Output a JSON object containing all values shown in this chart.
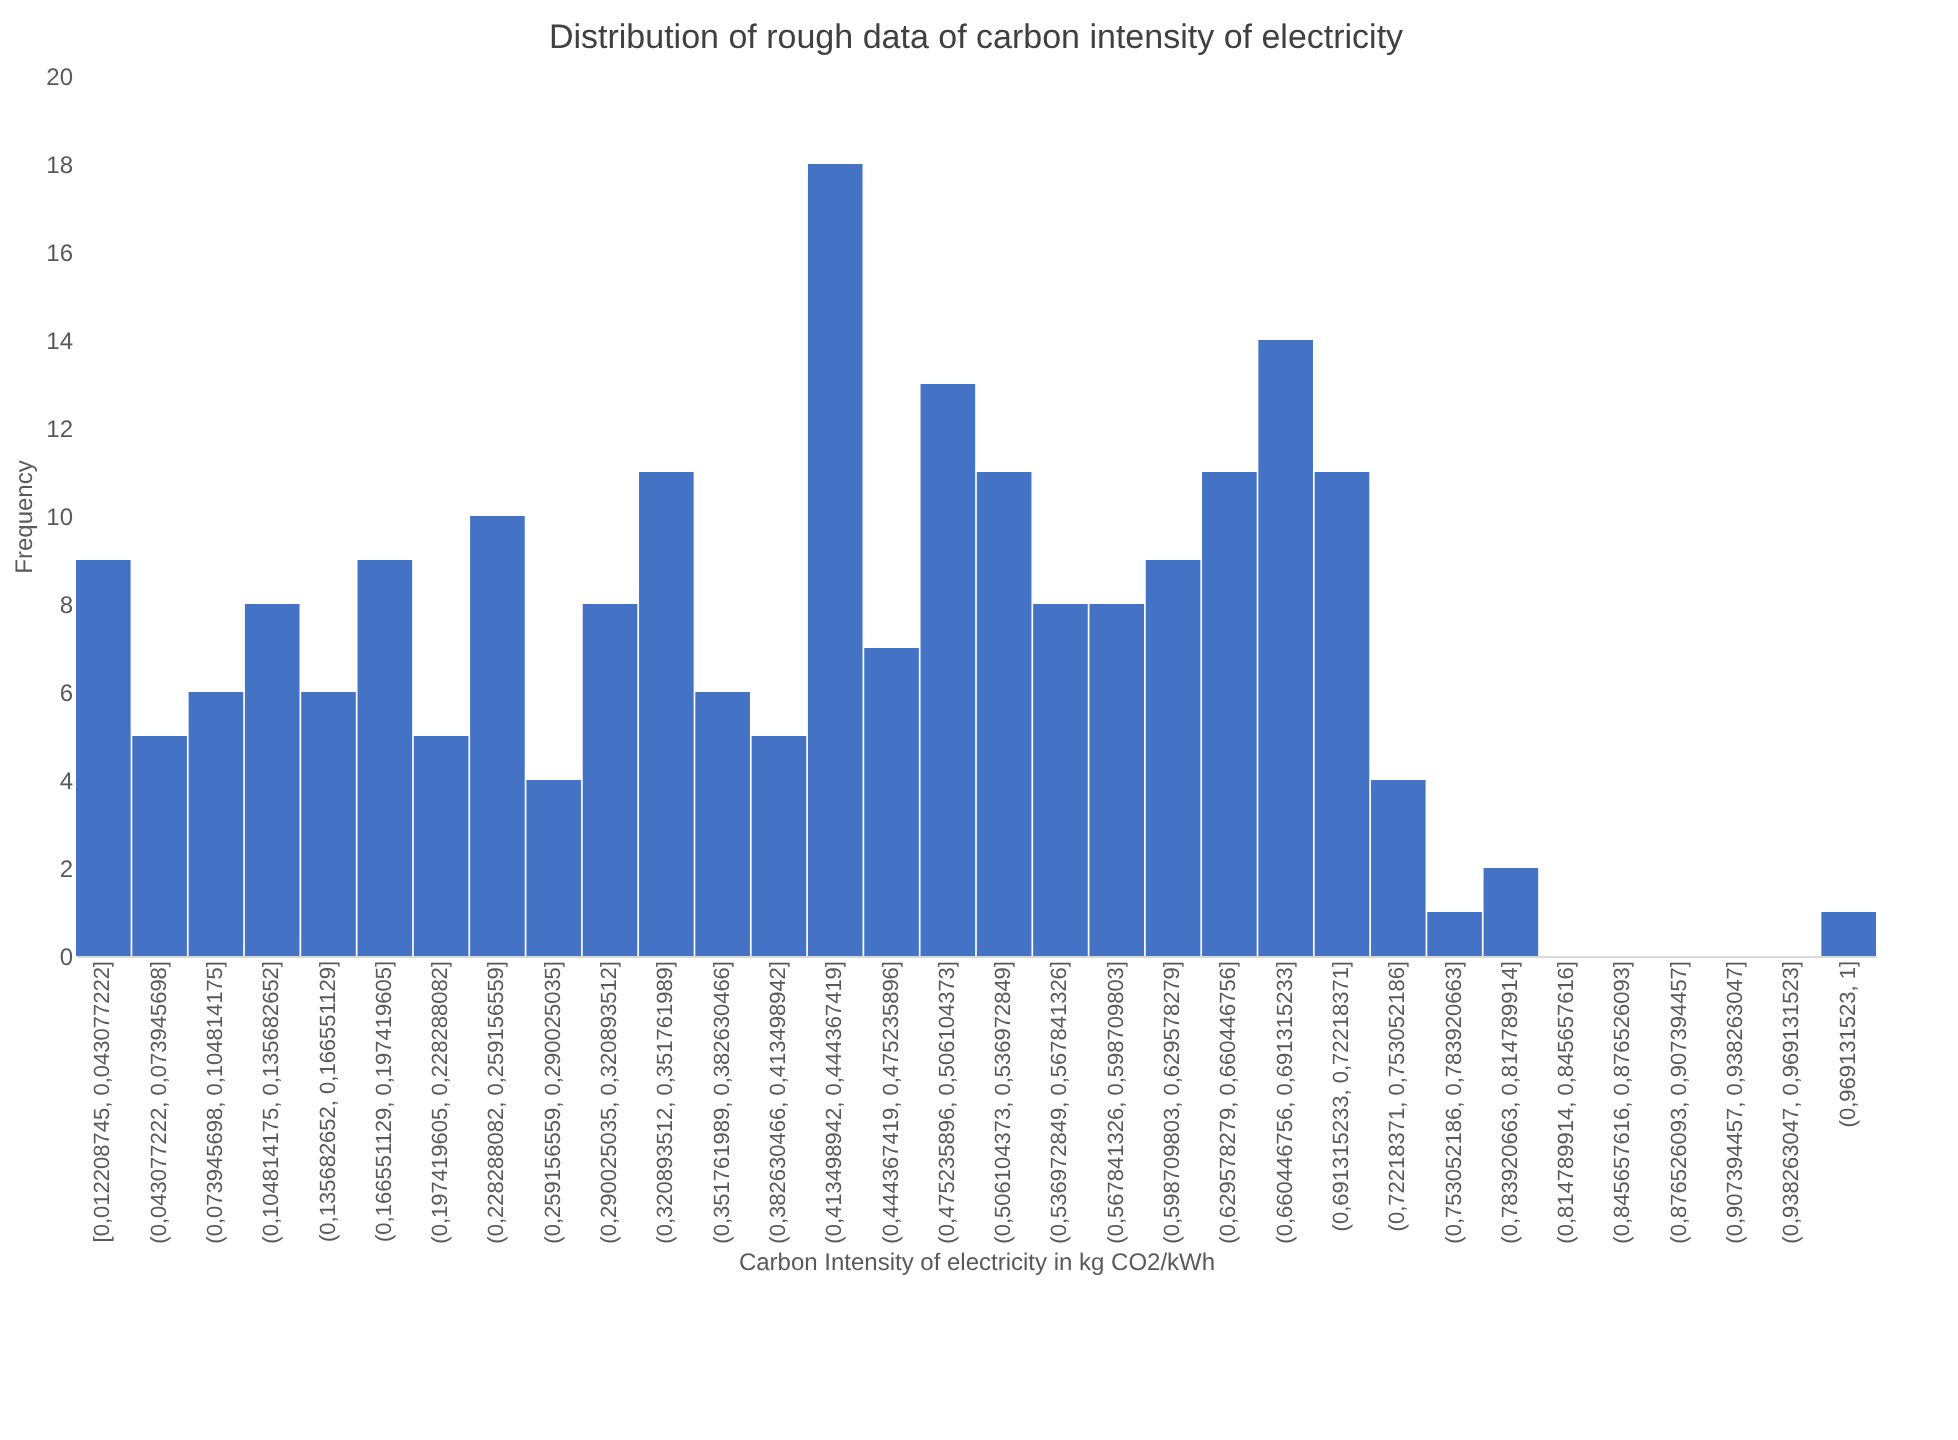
{
  "chart_data": {
    "type": "bar",
    "title": "Distribution of rough data of carbon intensity of electricity",
    "xlabel": "Carbon Intensity of electricity in kg CO2/kWh",
    "ylabel": "Frequency",
    "categories": [
      "[0,012208745, 0,043077222]",
      "(0,043077222, 0,073945698]",
      "(0,073945698, 0,104814175]",
      "(0,104814175, 0,135682652]",
      "(0,135682652, 0,166551129]",
      "(0,166551129, 0,197419605]",
      "(0,197419605, 0,228288082]",
      "(0,228288082, 0,259156559]",
      "(0,259156559, 0,290025035]",
      "(0,290025035, 0,320893512]",
      "(0,320893512, 0,351761989]",
      "(0,351761989, 0,382630466]",
      "(0,382630466, 0,413498942]",
      "(0,413498942, 0,444367419]",
      "(0,444367419, 0,475235896]",
      "(0,475235896, 0,506104373]",
      "(0,506104373, 0,536972849]",
      "(0,536972849, 0,567841326]",
      "(0,567841326, 0,598709803]",
      "(0,598709803, 0,629578279]",
      "(0,629578279, 0,660446756]",
      "(0,660446756, 0,691315233]",
      "(0,691315233, 0,72218371]",
      "(0,72218371, 0,753052186]",
      "(0,753052186, 0,783920663]",
      "(0,783920663, 0,814789914]",
      "(0,814789914, 0,845657616]",
      "(0,845657616, 0,876526093]",
      "(0,876526093, 0,907394457]",
      "(0,907394457, 0,938263047]",
      "(0,938263047, 0,969131523]",
      "(0,969131523, 1]"
    ],
    "values": [
      9,
      5,
      6,
      8,
      6,
      9,
      5,
      10,
      4,
      8,
      11,
      6,
      5,
      18,
      7,
      13,
      11,
      8,
      8,
      9,
      11,
      14,
      11,
      4,
      1,
      2,
      0,
      0,
      0,
      0,
      0,
      1
    ],
    "color": "#4472c4",
    "ylim": [
      0,
      20
    ],
    "yticks": [
      0,
      2,
      4,
      6,
      8,
      10,
      12,
      14,
      16,
      18,
      20
    ],
    "grid": false
  }
}
